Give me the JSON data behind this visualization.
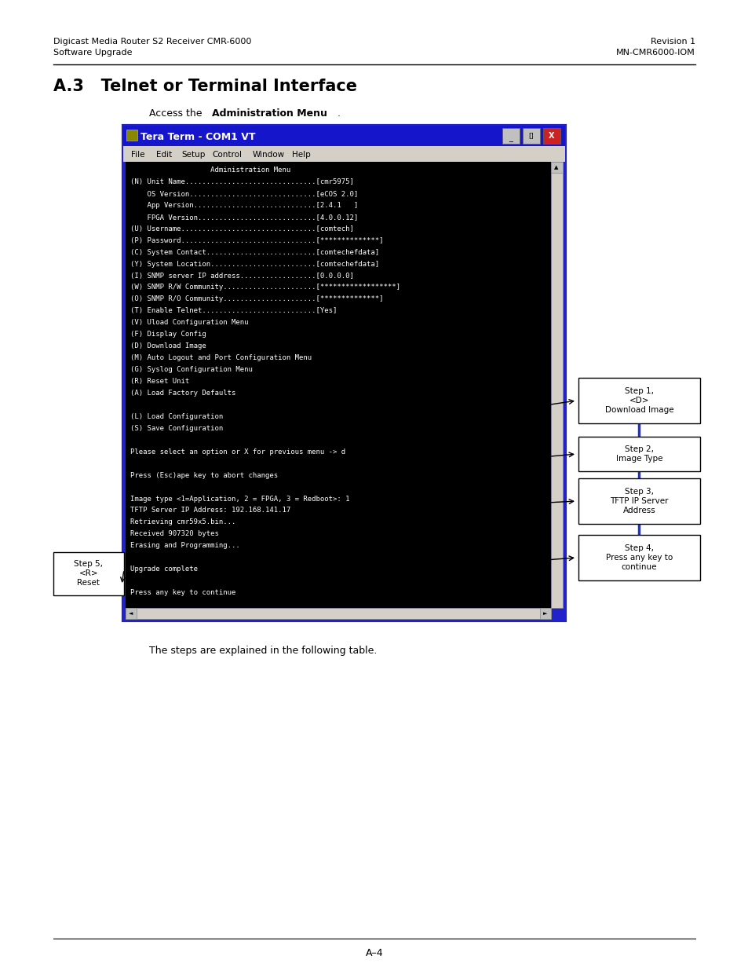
{
  "page_bg": "#ffffff",
  "header_left_line1": "Digicast Media Router S2 Receiver CMR-6000",
  "header_left_line2": "Software Upgrade",
  "header_right_line1": "Revision 1",
  "header_right_line2": "MN-CMR6000-IOM",
  "section_title": "A.3   Telnet or Terminal Interface",
  "terminal_title": "Tera Term - COM1 VT",
  "terminal_lines": [
    "                   Administration Menu",
    "(N) Unit Name...............................[cmr5975]",
    "    OS Version..............................[eCOS 2.0]",
    "    App Version.............................[2.4.1   ]",
    "    FPGA Version............................[4.0.0.12]",
    "(U) Username................................[comtech]",
    "(P) Password................................[**************]",
    "(C) System Contact..........................[comtechefdata]",
    "(Y) System Location.........................[comtechefdata]",
    "(I) SNMP server IP address..................[0.0.0.0]",
    "(W) SNMP R/W Community......................[******************]",
    "(O) SNMP R/O Community......................[**************]",
    "(T) Enable Telnet...........................[Yes]",
    "(V) Uload Configuration Menu",
    "(F) Display Config",
    "(D) Download Image",
    "(M) Auto Logout and Port Configuration Menu",
    "(G) Syslog Configuration Menu",
    "(R) Reset Unit",
    "(A) Load Factory Defaults",
    "",
    "(L) Load Configuration",
    "(S) Save Configuration",
    "",
    "Please select an option or X for previous menu -> d",
    "",
    "Press (Esc)ape key to abort changes",
    "",
    "Image type <1=Application, 2 = FPGA, 3 = Redboot>: 1",
    "TFTP Server IP Address: 192.168.141.17",
    "Retrieving cmr59x5.bin...",
    "Received 907320 bytes",
    "Erasing and Programming...",
    "",
    "Upgrade complete",
    "",
    "Press any key to continue"
  ],
  "footer_text": "A–4",
  "bottom_caption": "The steps are explained in the following table."
}
